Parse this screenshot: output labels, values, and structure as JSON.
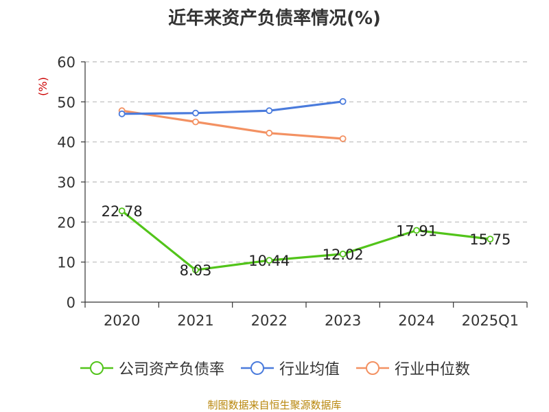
{
  "title": "近年来资产负债率情况(%)",
  "source": "制图数据来自恒生聚源数据库",
  "chart_data": {
    "type": "line",
    "title": "近年来资产负债率情况(%)",
    "ylabel": "(%)",
    "ylim": [
      0,
      60
    ],
    "yticks": [
      "0",
      "10",
      "20",
      "30",
      "40",
      "50",
      "60"
    ],
    "categories": [
      "2020",
      "2021",
      "2022",
      "2023",
      "2024",
      "2025Q1"
    ],
    "grid": true,
    "legend_position": "bottom",
    "series": [
      {
        "name": "公司资产负债率",
        "color": "#52c41a",
        "values": [
          22.78,
          8.03,
          10.44,
          12.02,
          17.91,
          15.75
        ],
        "labels": [
          "22.78",
          "8.03",
          "10.44",
          "12.02",
          "17.91",
          "15.75"
        ]
      },
      {
        "name": "行业均值",
        "color": "#4a7bdc",
        "values": [
          47.0,
          47.2,
          47.8,
          50.1,
          null,
          null
        ]
      },
      {
        "name": "行业中位数",
        "color": "#f39162",
        "values": [
          47.8,
          45.0,
          42.2,
          40.8,
          null,
          null
        ]
      }
    ]
  }
}
